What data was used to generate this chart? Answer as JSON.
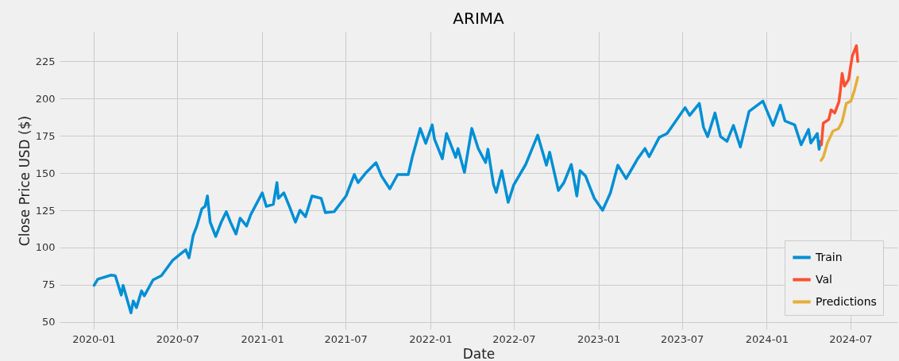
{
  "chart_data": {
    "type": "line",
    "title": "ARIMA",
    "xlabel": "Date",
    "ylabel": "Close Price USD ($)",
    "xlim": [
      "2019-10-19",
      "2024-10-11"
    ],
    "ylim": [
      45,
      245
    ],
    "xticks": [
      "2020-01",
      "2020-07",
      "2021-01",
      "2021-07",
      "2022-01",
      "2022-07",
      "2023-01",
      "2023-07",
      "2024-01",
      "2024-07"
    ],
    "yticks": [
      50,
      75,
      100,
      125,
      150,
      175,
      200,
      225
    ],
    "grid": true,
    "legend": "bottom right",
    "series": [
      {
        "name": "Train",
        "color": "#008fd5",
        "x": [
          "2020-01-02",
          "2020-01-10",
          "2020-02-08",
          "2020-02-17",
          "2020-03-01",
          "2020-03-05",
          "2020-03-22",
          "2020-03-27",
          "2020-04-03",
          "2020-04-14",
          "2020-04-20",
          "2020-05-09",
          "2020-05-27",
          "2020-06-21",
          "2020-07-08",
          "2020-07-19",
          "2020-07-26",
          "2020-08-04",
          "2020-08-12",
          "2020-08-23",
          "2020-08-30",
          "2020-09-04",
          "2020-09-10",
          "2020-09-22",
          "2020-10-04",
          "2020-10-15",
          "2020-10-24",
          "2020-11-05",
          "2020-11-14",
          "2020-11-28",
          "2020-12-07",
          "2021-01-01",
          "2021-01-10",
          "2021-01-25",
          "2021-02-02",
          "2021-02-05",
          "2021-02-17",
          "2021-03-03",
          "2021-03-14",
          "2021-03-24",
          "2021-04-05",
          "2021-04-19",
          "2021-05-09",
          "2021-05-18",
          "2021-06-06",
          "2021-07-02",
          "2021-07-20",
          "2021-07-28",
          "2021-08-15",
          "2021-09-05",
          "2021-09-17",
          "2021-10-05",
          "2021-10-22",
          "2021-11-14",
          "2021-11-23",
          "2021-12-10",
          "2021-12-22",
          "2022-01-05",
          "2022-01-10",
          "2022-01-27",
          "2022-02-05",
          "2022-02-25",
          "2022-03-02",
          "2022-03-16",
          "2022-04-01",
          "2022-04-15",
          "2022-05-01",
          "2022-05-06",
          "2022-05-18",
          "2022-05-24",
          "2022-06-05",
          "2022-06-19",
          "2022-07-01",
          "2022-07-27",
          "2022-08-22",
          "2022-09-10",
          "2022-09-17",
          "2022-10-06",
          "2022-10-18",
          "2022-11-03",
          "2022-11-15",
          "2022-11-22",
          "2022-12-04",
          "2022-12-14",
          "2022-12-23",
          "2023-01-10",
          "2023-01-27",
          "2023-02-12",
          "2023-03-02",
          "2023-03-20",
          "2023-03-27",
          "2023-04-12",
          "2023-04-21",
          "2023-05-13",
          "2023-05-30",
          "2023-06-17",
          "2023-07-08",
          "2023-07-18",
          "2023-08-08",
          "2023-08-17",
          "2023-08-26",
          "2023-09-11",
          "2023-09-23",
          "2023-10-07",
          "2023-10-21",
          "2023-11-05",
          "2023-11-24",
          "2023-12-24",
          "2024-01-15",
          "2024-01-31",
          "2024-02-10",
          "2024-03-02",
          "2024-03-16",
          "2024-04-01",
          "2024-04-06",
          "2024-04-20",
          "2024-04-24",
          "2024-04-27"
        ],
        "values": [
          74.5,
          78.7,
          81.4,
          81,
          68,
          74.5,
          56,
          64,
          59.6,
          70.8,
          67.5,
          78.2,
          81,
          91.5,
          95.7,
          98.4,
          93,
          108,
          114.4,
          126,
          127.6,
          134.6,
          117,
          107.4,
          117,
          124,
          117,
          109,
          119.7,
          114.4,
          122,
          136.7,
          127.6,
          129,
          143.6,
          133,
          136.7,
          126,
          117,
          125,
          120.7,
          134.6,
          133,
          123.4,
          124,
          134.6,
          149,
          143.6,
          150.5,
          157,
          148,
          139.4,
          149,
          149,
          161,
          180,
          170,
          182.4,
          172.8,
          159.6,
          176.6,
          160.6,
          166.5,
          150.5,
          180,
          166.5,
          157,
          166,
          142.5,
          137,
          151.6,
          130.3,
          142,
          155.8,
          175.5,
          155.3,
          164,
          138.3,
          143.6,
          155.8,
          134.6,
          151.6,
          148,
          140,
          133,
          125,
          136.7,
          155.3,
          146.3,
          155.8,
          159.6,
          166.5,
          161,
          174,
          176.6,
          184.6,
          194,
          188.8,
          196.8,
          180.8,
          174.5,
          190.4,
          174.5,
          171.3,
          182,
          167.5,
          191.5,
          198.4,
          182,
          195.7,
          185,
          182.4,
          169,
          179.3,
          170.2,
          176.6,
          166,
          171.3
        ]
      },
      {
        "name": "Val",
        "color": "#fc4f30",
        "x": [
          "2024-04-29",
          "2024-05-03",
          "2024-05-15",
          "2024-05-20",
          "2024-05-28",
          "2024-06-06",
          "2024-06-09",
          "2024-06-13",
          "2024-06-18",
          "2024-06-27",
          "2024-07-05",
          "2024-07-14",
          "2024-07-17"
        ],
        "values": [
          169,
          183.5,
          186,
          192.5,
          190.4,
          197.9,
          205,
          217,
          208.5,
          212.8,
          228.7,
          235.6,
          225
        ]
      },
      {
        "name": "Predictions",
        "color": "#e5ae38",
        "x": [
          "2024-04-28",
          "2024-05-03",
          "2024-05-12",
          "2024-05-24",
          "2024-06-05",
          "2024-06-13",
          "2024-06-22",
          "2024-07-02",
          "2024-07-09",
          "2024-07-17"
        ],
        "values": [
          158.5,
          160.6,
          170.2,
          178.2,
          179.8,
          184.6,
          196.8,
          198.4,
          204.8,
          214.4
        ]
      }
    ]
  }
}
